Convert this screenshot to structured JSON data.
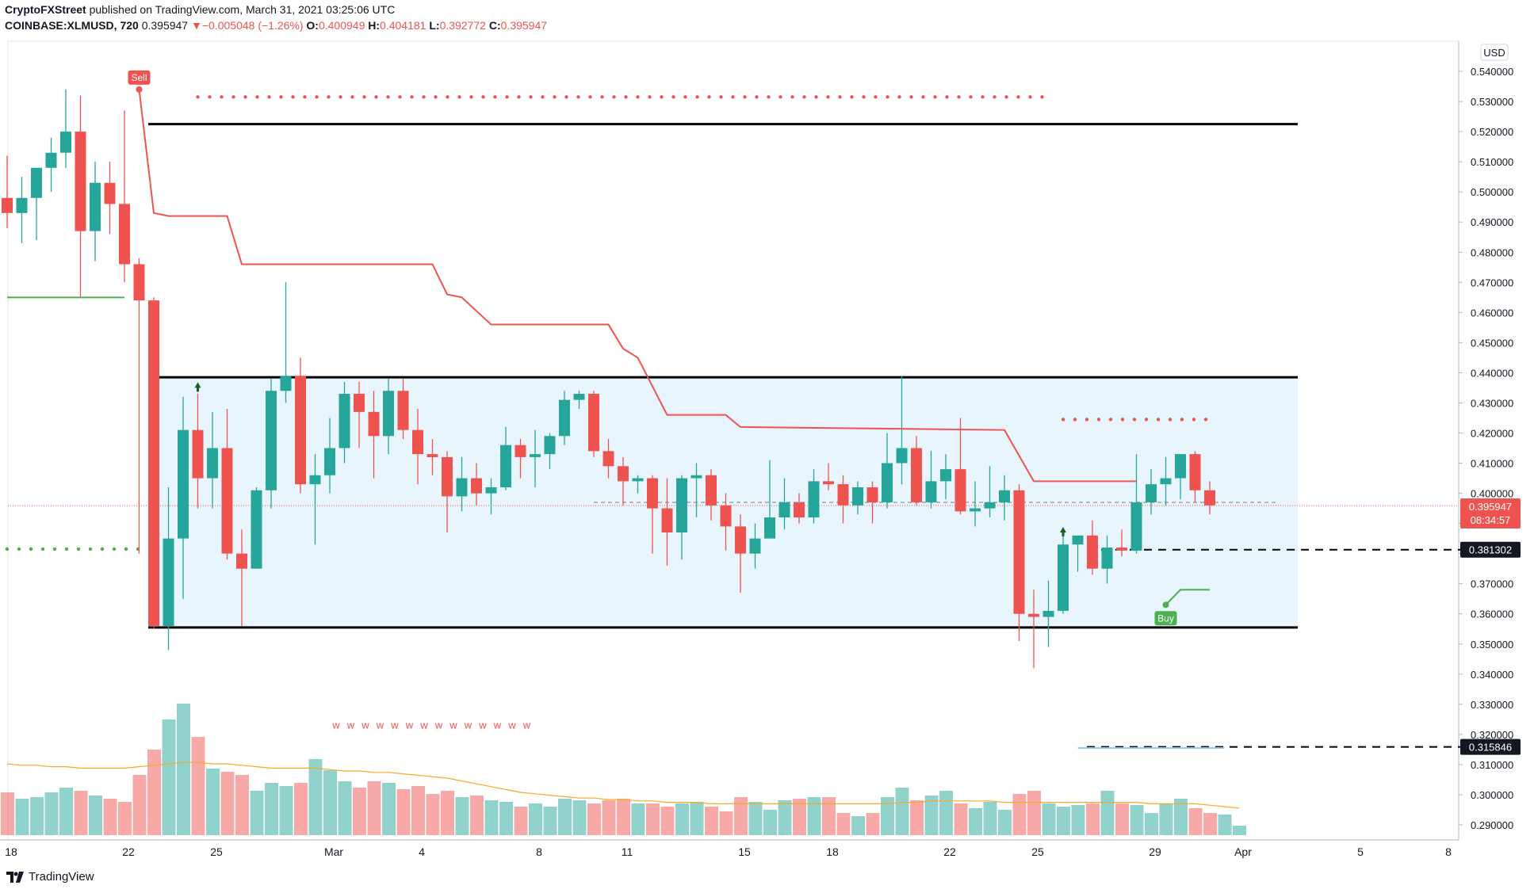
{
  "header": {
    "publisher": "CryptoFXStreet",
    "published_text": "published on TradingView.com, March 31, 2021 03:25:06 UTC",
    "symbol": "COINBASE:XLMUSD, 720",
    "last": "0.395947",
    "change": "▼−0.005048 (−1.26%)",
    "o_label": "O:",
    "o_value": "0.400949",
    "h_label": "H:",
    "h_value": "0.404181",
    "l_label": "L:",
    "l_value": "0.392772",
    "c_label": "C:",
    "c_value": "0.395947"
  },
  "currency_badge": "USD",
  "price_badge": {
    "value": "0.395947",
    "countdown": "08:34:57"
  },
  "level_badges": [
    "0.381302",
    "0.315846"
  ],
  "signals": {
    "sell": "Sell",
    "buy": "Buy",
    "w_marker": "w"
  },
  "footer": {
    "brand": "TradingView"
  },
  "colors": {
    "up": "#26a69a",
    "down": "#ef5350",
    "box_fill": "#e3f2fd",
    "supertrend": "#ef5350"
  },
  "chart_data": {
    "type": "candlestick",
    "timeframe": "720",
    "y_axis": {
      "min": 0.285,
      "max": 0.55,
      "ticks": [
        "0.290000",
        "0.300000",
        "0.310000",
        "0.320000",
        "0.330000",
        "0.340000",
        "0.350000",
        "0.360000",
        "0.370000",
        "0.380000",
        "0.390000",
        "0.400000",
        "0.410000",
        "0.420000",
        "0.430000",
        "0.440000",
        "0.450000",
        "0.460000",
        "0.470000",
        "0.480000",
        "0.490000",
        "0.500000",
        "0.510000",
        "0.520000",
        "0.530000",
        "0.540000"
      ]
    },
    "x_axis": {
      "ticks": [
        {
          "label": "18",
          "index": 0
        },
        {
          "label": "22",
          "index": 8
        },
        {
          "label": "25",
          "index": 14
        },
        {
          "label": "Mar",
          "index": 22
        },
        {
          "label": "4",
          "index": 28
        },
        {
          "label": "8",
          "index": 36
        },
        {
          "label": "11",
          "index": 42
        },
        {
          "label": "15",
          "index": 50
        },
        {
          "label": "18",
          "index": 56
        },
        {
          "label": "22",
          "index": 64
        },
        {
          "label": "25",
          "index": 70
        },
        {
          "label": "29",
          "index": 78
        },
        {
          "label": "Apr",
          "index": 84
        },
        {
          "label": "5",
          "index": 92
        },
        {
          "label": "8",
          "index": 98
        }
      ]
    },
    "candles": [
      {
        "o": 0.498,
        "h": 0.512,
        "l": 0.488,
        "c": 0.493
      },
      {
        "o": 0.493,
        "h": 0.505,
        "l": 0.483,
        "c": 0.498
      },
      {
        "o": 0.498,
        "h": 0.508,
        "l": 0.484,
        "c": 0.508
      },
      {
        "o": 0.508,
        "h": 0.518,
        "l": 0.5,
        "c": 0.513
      },
      {
        "o": 0.513,
        "h": 0.534,
        "l": 0.508,
        "c": 0.52
      },
      {
        "o": 0.52,
        "h": 0.532,
        "l": 0.465,
        "c": 0.487
      },
      {
        "o": 0.487,
        "h": 0.51,
        "l": 0.477,
        "c": 0.503
      },
      {
        "o": 0.503,
        "h": 0.51,
        "l": 0.486,
        "c": 0.496
      },
      {
        "o": 0.496,
        "h": 0.527,
        "l": 0.47,
        "c": 0.476
      },
      {
        "o": 0.476,
        "h": 0.478,
        "l": 0.38,
        "c": 0.464
      },
      {
        "o": 0.464,
        "h": 0.465,
        "l": 0.355,
        "c": 0.356
      },
      {
        "o": 0.356,
        "h": 0.402,
        "l": 0.348,
        "c": 0.385
      },
      {
        "o": 0.385,
        "h": 0.432,
        "l": 0.365,
        "c": 0.421
      },
      {
        "o": 0.421,
        "h": 0.433,
        "l": 0.395,
        "c": 0.405
      },
      {
        "o": 0.405,
        "h": 0.427,
        "l": 0.395,
        "c": 0.415
      },
      {
        "o": 0.415,
        "h": 0.428,
        "l": 0.378,
        "c": 0.38
      },
      {
        "o": 0.38,
        "h": 0.388,
        "l": 0.356,
        "c": 0.375
      },
      {
        "o": 0.375,
        "h": 0.402,
        "l": 0.375,
        "c": 0.401
      },
      {
        "o": 0.401,
        "h": 0.438,
        "l": 0.395,
        "c": 0.434
      },
      {
        "o": 0.434,
        "h": 0.47,
        "l": 0.43,
        "c": 0.439
      },
      {
        "o": 0.439,
        "h": 0.445,
        "l": 0.4,
        "c": 0.403
      },
      {
        "o": 0.403,
        "h": 0.413,
        "l": 0.383,
        "c": 0.406
      },
      {
        "o": 0.406,
        "h": 0.425,
        "l": 0.4,
        "c": 0.415
      },
      {
        "o": 0.415,
        "h": 0.437,
        "l": 0.41,
        "c": 0.433
      },
      {
        "o": 0.433,
        "h": 0.437,
        "l": 0.415,
        "c": 0.427
      },
      {
        "o": 0.427,
        "h": 0.434,
        "l": 0.405,
        "c": 0.419
      },
      {
        "o": 0.419,
        "h": 0.438,
        "l": 0.413,
        "c": 0.434
      },
      {
        "o": 0.434,
        "h": 0.438,
        "l": 0.418,
        "c": 0.421
      },
      {
        "o": 0.421,
        "h": 0.428,
        "l": 0.403,
        "c": 0.413
      },
      {
        "o": 0.413,
        "h": 0.418,
        "l": 0.406,
        "c": 0.412
      },
      {
        "o": 0.412,
        "h": 0.414,
        "l": 0.387,
        "c": 0.399
      },
      {
        "o": 0.399,
        "h": 0.412,
        "l": 0.394,
        "c": 0.405
      },
      {
        "o": 0.405,
        "h": 0.41,
        "l": 0.396,
        "c": 0.4
      },
      {
        "o": 0.4,
        "h": 0.405,
        "l": 0.393,
        "c": 0.402
      },
      {
        "o": 0.402,
        "h": 0.422,
        "l": 0.401,
        "c": 0.416
      },
      {
        "o": 0.416,
        "h": 0.418,
        "l": 0.405,
        "c": 0.412
      },
      {
        "o": 0.412,
        "h": 0.421,
        "l": 0.402,
        "c": 0.413
      },
      {
        "o": 0.413,
        "h": 0.42,
        "l": 0.408,
        "c": 0.419
      },
      {
        "o": 0.419,
        "h": 0.434,
        "l": 0.416,
        "c": 0.431
      },
      {
        "o": 0.431,
        "h": 0.434,
        "l": 0.428,
        "c": 0.433
      },
      {
        "o": 0.433,
        "h": 0.434,
        "l": 0.412,
        "c": 0.414
      },
      {
        "o": 0.414,
        "h": 0.418,
        "l": 0.405,
        "c": 0.409
      },
      {
        "o": 0.409,
        "h": 0.412,
        "l": 0.396,
        "c": 0.404
      },
      {
        "o": 0.404,
        "h": 0.406,
        "l": 0.4,
        "c": 0.405
      },
      {
        "o": 0.405,
        "h": 0.406,
        "l": 0.38,
        "c": 0.395
      },
      {
        "o": 0.395,
        "h": 0.405,
        "l": 0.376,
        "c": 0.387
      },
      {
        "o": 0.387,
        "h": 0.406,
        "l": 0.378,
        "c": 0.405
      },
      {
        "o": 0.405,
        "h": 0.41,
        "l": 0.392,
        "c": 0.406
      },
      {
        "o": 0.406,
        "h": 0.408,
        "l": 0.391,
        "c": 0.396
      },
      {
        "o": 0.396,
        "h": 0.4,
        "l": 0.381,
        "c": 0.389
      },
      {
        "o": 0.389,
        "h": 0.393,
        "l": 0.367,
        "c": 0.38
      },
      {
        "o": 0.38,
        "h": 0.39,
        "l": 0.375,
        "c": 0.385
      },
      {
        "o": 0.385,
        "h": 0.411,
        "l": 0.385,
        "c": 0.392
      },
      {
        "o": 0.392,
        "h": 0.405,
        "l": 0.388,
        "c": 0.397
      },
      {
        "o": 0.397,
        "h": 0.4,
        "l": 0.39,
        "c": 0.392
      },
      {
        "o": 0.392,
        "h": 0.408,
        "l": 0.39,
        "c": 0.404
      },
      {
        "o": 0.404,
        "h": 0.41,
        "l": 0.401,
        "c": 0.403
      },
      {
        "o": 0.403,
        "h": 0.406,
        "l": 0.39,
        "c": 0.396
      },
      {
        "o": 0.396,
        "h": 0.404,
        "l": 0.393,
        "c": 0.402
      },
      {
        "o": 0.402,
        "h": 0.404,
        "l": 0.39,
        "c": 0.397
      },
      {
        "o": 0.397,
        "h": 0.42,
        "l": 0.395,
        "c": 0.41
      },
      {
        "o": 0.41,
        "h": 0.439,
        "l": 0.403,
        "c": 0.415
      },
      {
        "o": 0.415,
        "h": 0.419,
        "l": 0.396,
        "c": 0.397
      },
      {
        "o": 0.397,
        "h": 0.414,
        "l": 0.395,
        "c": 0.404
      },
      {
        "o": 0.404,
        "h": 0.413,
        "l": 0.398,
        "c": 0.408
      },
      {
        "o": 0.408,
        "h": 0.425,
        "l": 0.393,
        "c": 0.394
      },
      {
        "o": 0.394,
        "h": 0.404,
        "l": 0.389,
        "c": 0.395
      },
      {
        "o": 0.395,
        "h": 0.409,
        "l": 0.392,
        "c": 0.397
      },
      {
        "o": 0.397,
        "h": 0.406,
        "l": 0.391,
        "c": 0.401
      },
      {
        "o": 0.401,
        "h": 0.403,
        "l": 0.351,
        "c": 0.36
      },
      {
        "o": 0.36,
        "h": 0.368,
        "l": 0.342,
        "c": 0.359
      },
      {
        "o": 0.359,
        "h": 0.371,
        "l": 0.349,
        "c": 0.361
      },
      {
        "o": 0.361,
        "h": 0.386,
        "l": 0.36,
        "c": 0.383
      },
      {
        "o": 0.383,
        "h": 0.386,
        "l": 0.374,
        "c": 0.386
      },
      {
        "o": 0.386,
        "h": 0.391,
        "l": 0.373,
        "c": 0.375
      },
      {
        "o": 0.375,
        "h": 0.386,
        "l": 0.37,
        "c": 0.382
      },
      {
        "o": 0.382,
        "h": 0.388,
        "l": 0.379,
        "c": 0.381
      },
      {
        "o": 0.381,
        "h": 0.413,
        "l": 0.38,
        "c": 0.397
      },
      {
        "o": 0.397,
        "h": 0.408,
        "l": 0.393,
        "c": 0.403
      },
      {
        "o": 0.403,
        "h": 0.412,
        "l": 0.396,
        "c": 0.405
      },
      {
        "o": 0.405,
        "h": 0.413,
        "l": 0.398,
        "c": 0.413
      },
      {
        "o": 0.413,
        "h": 0.414,
        "l": 0.397,
        "c": 0.401
      },
      {
        "o": 0.401,
        "h": 0.404,
        "l": 0.393,
        "c": 0.396
      }
    ],
    "volume": {
      "values": [
        27,
        23,
        24,
        27,
        30,
        28,
        25,
        23,
        21,
        38,
        54,
        73,
        83,
        62,
        42,
        40,
        38,
        28,
        33,
        31,
        33,
        48,
        41,
        34,
        30,
        34,
        33,
        29,
        31,
        26,
        28,
        24,
        25,
        22,
        21,
        18,
        20,
        18,
        23,
        22,
        20,
        22,
        23,
        20,
        20,
        18,
        20,
        21,
        18,
        15,
        24,
        21,
        16,
        22,
        23,
        24,
        24,
        14,
        12,
        14,
        24,
        30,
        22,
        25,
        28,
        20,
        17,
        21,
        16,
        26,
        28,
        20,
        18,
        19,
        20,
        28,
        20,
        19,
        14,
        20,
        23,
        17,
        14,
        13,
        6
      ],
      "moving_average": [
        50,
        49,
        49,
        48,
        48,
        47,
        47,
        47,
        47,
        48,
        49,
        50,
        51,
        51,
        50,
        50,
        49,
        48,
        47,
        47,
        47,
        47,
        46,
        45,
        45,
        44,
        44,
        43,
        42,
        41,
        40,
        38,
        36,
        34,
        32,
        30,
        29,
        28,
        27,
        26,
        26,
        25,
        25,
        24,
        24,
        23,
        23,
        23,
        22,
        22,
        22,
        22,
        22,
        22,
        22,
        22,
        22,
        22,
        22,
        22,
        22,
        23,
        23,
        24,
        24,
        24,
        24,
        24,
        23,
        23,
        23,
        23,
        23,
        23,
        23,
        23,
        23,
        23,
        22,
        22,
        22,
        22,
        21,
        20,
        19
      ]
    },
    "supertrend": [
      {
        "i": 9,
        "v": 0.534
      },
      {
        "i": 10,
        "v": 0.493
      },
      {
        "i": 11,
        "v": 0.492
      },
      {
        "i": 15,
        "v": 0.492
      },
      {
        "i": 16,
        "v": 0.476
      },
      {
        "i": 29,
        "v": 0.476
      },
      {
        "i": 30,
        "v": 0.466
      },
      {
        "i": 31,
        "v": 0.465
      },
      {
        "i": 33,
        "v": 0.456
      },
      {
        "i": 41,
        "v": 0.456
      },
      {
        "i": 42,
        "v": 0.448
      },
      {
        "i": 43,
        "v": 0.445
      },
      {
        "i": 45,
        "v": 0.426
      },
      {
        "i": 49,
        "v": 0.426
      },
      {
        "i": 50,
        "v": 0.422
      },
      {
        "i": 68,
        "v": 0.421
      },
      {
        "i": 70,
        "v": 0.404
      },
      {
        "i": 77,
        "v": 0.404
      }
    ],
    "supertrend_up": [
      {
        "i": 0,
        "v": 0.465
      },
      {
        "i": 8,
        "v": 0.465
      }
    ],
    "supertrend_up_2": [
      {
        "i": 79,
        "v": 0.363
      },
      {
        "i": 80,
        "v": 0.368
      },
      {
        "i": 82,
        "v": 0.368
      }
    ],
    "horizontal_lines": [
      {
        "value": 0.5225,
        "from": 10,
        "to": 88,
        "style": "solid"
      },
      {
        "value": 0.4385,
        "from": 10,
        "to": 88,
        "style": "solid"
      },
      {
        "value": 0.3555,
        "from": 10,
        "to": 88,
        "style": "solid"
      },
      {
        "value": 0.381302,
        "from": 74,
        "to": 102,
        "style": "dashed"
      },
      {
        "value": 0.315846,
        "from": 74,
        "to": 102,
        "style": "dashed"
      }
    ],
    "range_box": {
      "top": 0.4385,
      "bottom": 0.3555,
      "from": 10,
      "to": 88
    },
    "dotted_levels": [
      {
        "value": 0.5315,
        "from": 13,
        "to": 71,
        "color": "#ef5350"
      },
      {
        "value": 0.4245,
        "from": 72,
        "to": 82,
        "color": "#ef5350"
      },
      {
        "value": 0.3815,
        "from": 0,
        "to": 9,
        "color": "#4caf50"
      }
    ],
    "w_markers": {
      "from": 22,
      "to": 35,
      "value": 0.322
    },
    "signals": [
      {
        "type": "sell",
        "i": 9,
        "v": 0.534
      },
      {
        "type": "buy",
        "i": 79,
        "v": 0.363
      }
    ],
    "arrows_up": [
      {
        "i": 13,
        "v": 0.435
      },
      {
        "i": 72,
        "v": 0.387
      }
    ],
    "last_price": 0.395947
  }
}
